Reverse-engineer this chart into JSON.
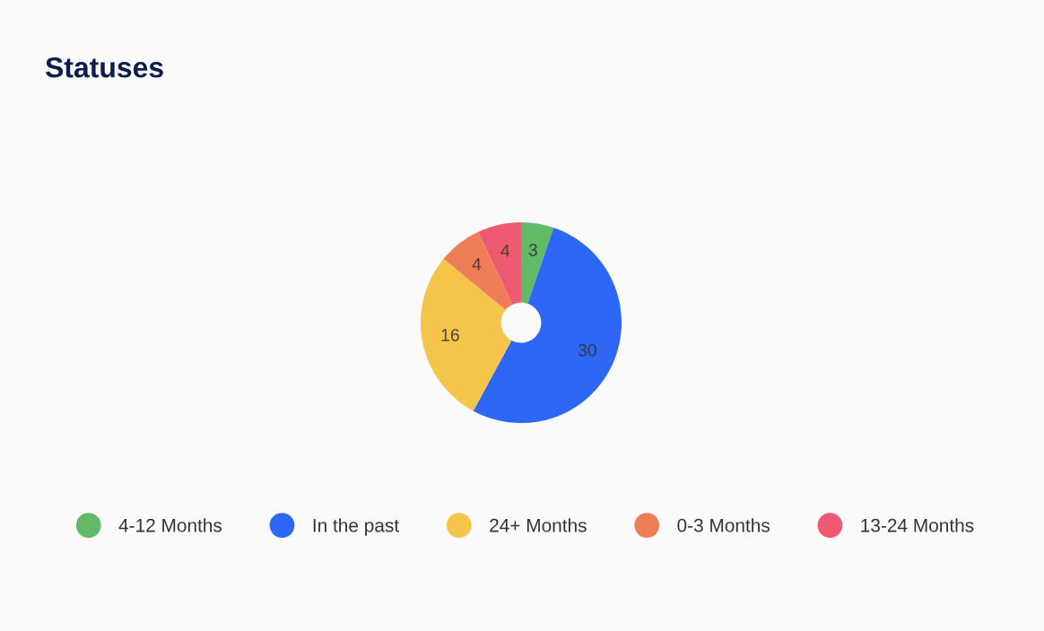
{
  "chart_data": {
    "type": "donut",
    "title": "Statuses",
    "categories": [
      "4-12 Months",
      "In the past",
      "24+ Months",
      "0-3 Months",
      "13-24 Months"
    ],
    "values": [
      3,
      30,
      16,
      4,
      4
    ],
    "colors": [
      "#62b966",
      "#2d67f6",
      "#f5c44b",
      "#ef7d57",
      "#ee5a70"
    ],
    "data_labels": true,
    "legend": "bottom"
  }
}
